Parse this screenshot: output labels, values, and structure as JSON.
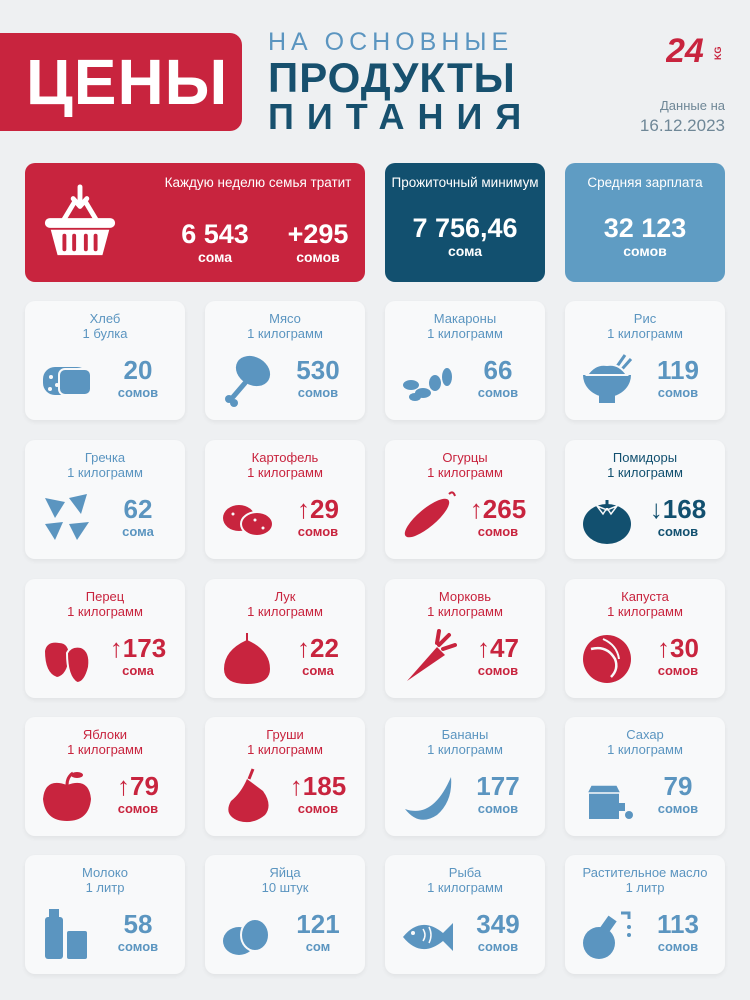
{
  "header": {
    "badge": "ЦЕНЫ",
    "line1": "НА ОСНОВНЫЕ",
    "line2": "ПРОДУКТЫ",
    "line3": "ПИТАНИЯ",
    "logo_icon": "24kg-logo",
    "date_label": "Данные на",
    "date": "16.12.2023",
    "brand_color": "#c8243e",
    "navy_color": "#12506f",
    "blue_color": "#5f9cc3"
  },
  "summary": {
    "weekly": {
      "title": "Каждую неделю семья тратит",
      "value": "6 543",
      "unit": "сома",
      "change": "+295",
      "change_unit": "сомов",
      "icon": "basket-icon"
    },
    "minimum": {
      "title": "Прожиточный минимум",
      "value": "7 756,46",
      "unit": "сома"
    },
    "salary": {
      "title": "Средняя зарплата",
      "value": "32 123",
      "unit": "сомов"
    }
  },
  "products": [
    {
      "name": "Хлеб",
      "qty": "1 булка",
      "price": "20",
      "unit": "сомов",
      "trend": "flat",
      "icon": "bread-icon",
      "color": "#5b95c0"
    },
    {
      "name": "Мясо",
      "qty": "1 килограмм",
      "price": "530",
      "unit": "сомов",
      "trend": "flat",
      "icon": "meat-icon",
      "color": "#5b95c0"
    },
    {
      "name": "Макароны",
      "qty": "1 килограмм",
      "price": "66",
      "unit": "сомов",
      "trend": "flat",
      "icon": "pasta-icon",
      "color": "#5b95c0"
    },
    {
      "name": "Рис",
      "qty": "1 килограмм",
      "price": "119",
      "unit": "сомов",
      "trend": "flat",
      "icon": "rice-bowl-icon",
      "color": "#5b95c0"
    },
    {
      "name": "Гречка",
      "qty": "1 килограмм",
      "price": "62",
      "unit": "сома",
      "trend": "flat",
      "icon": "buckwheat-icon",
      "color": "#5b95c0"
    },
    {
      "name": "Картофель",
      "qty": "1 килограмм",
      "price": "29",
      "unit": "сомов",
      "trend": "up",
      "icon": "potato-icon",
      "color": "#c8243e"
    },
    {
      "name": "Огурцы",
      "qty": "1 килограмм",
      "price": "265",
      "unit": "сомов",
      "trend": "up",
      "icon": "cucumber-icon",
      "color": "#c8243e"
    },
    {
      "name": "Помидоры",
      "qty": "1 килограмм",
      "price": "168",
      "unit": "сомов",
      "trend": "down",
      "icon": "tomato-icon",
      "color": "#12506f"
    },
    {
      "name": "Перец",
      "qty": "1 килограмм",
      "price": "173",
      "unit": "сома",
      "trend": "up",
      "icon": "pepper-icon",
      "color": "#c8243e"
    },
    {
      "name": "Лук",
      "qty": "1 килограмм",
      "price": "22",
      "unit": "сома",
      "trend": "up",
      "icon": "onion-icon",
      "color": "#c8243e"
    },
    {
      "name": "Морковь",
      "qty": "1 килограмм",
      "price": "47",
      "unit": "сомов",
      "trend": "up",
      "icon": "carrot-icon",
      "color": "#c8243e"
    },
    {
      "name": "Капуста",
      "qty": "1 килограмм",
      "price": "30",
      "unit": "сомов",
      "trend": "up",
      "icon": "cabbage-icon",
      "color": "#c8243e"
    },
    {
      "name": "Яблоки",
      "qty": "1 килограмм",
      "price": "79",
      "unit": "сомов",
      "trend": "up",
      "icon": "apple-icon",
      "color": "#c8243e"
    },
    {
      "name": "Груши",
      "qty": "1 килограмм",
      "price": "185",
      "unit": "сомов",
      "trend": "up",
      "icon": "pear-icon",
      "color": "#c8243e"
    },
    {
      "name": "Бананы",
      "qty": "1 килограмм",
      "price": "177",
      "unit": "сомов",
      "trend": "flat",
      "icon": "banana-icon",
      "color": "#5b95c0"
    },
    {
      "name": "Сахар",
      "qty": "1 килограмм",
      "price": "79",
      "unit": "сомов",
      "trend": "flat",
      "icon": "sugar-icon",
      "color": "#5b95c0"
    },
    {
      "name": "Молоко",
      "qty": "1 литр",
      "price": "58",
      "unit": "сомов",
      "trend": "flat",
      "icon": "milk-icon",
      "color": "#5b95c0"
    },
    {
      "name": "Яйца",
      "qty": "10 штук",
      "price": "121",
      "unit": "сом",
      "trend": "flat",
      "icon": "eggs-icon",
      "color": "#5b95c0"
    },
    {
      "name": "Рыба",
      "qty": "1 килограмм",
      "price": "349",
      "unit": "сомов",
      "trend": "flat",
      "icon": "fish-icon",
      "color": "#5b95c0"
    },
    {
      "name": "Растительное масло",
      "qty": "1 литр",
      "price": "113",
      "unit": "сомов",
      "trend": "flat",
      "icon": "oil-icon",
      "color": "#5b95c0"
    }
  ]
}
